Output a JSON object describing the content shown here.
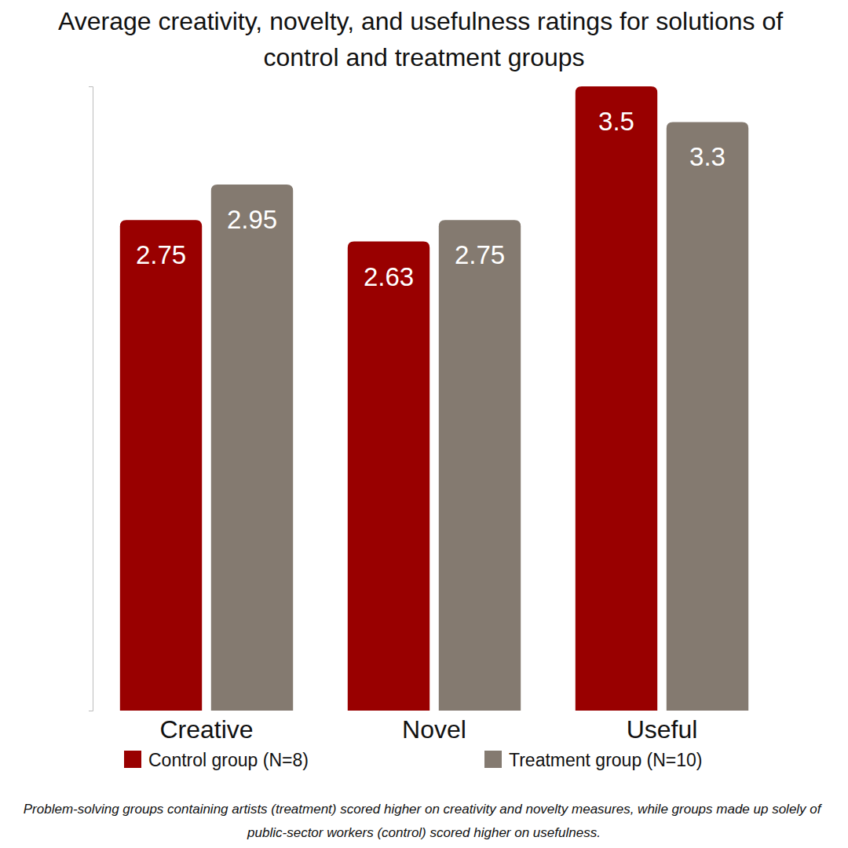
{
  "chart_data": {
    "type": "bar",
    "title": "Average creativity, novelty, and usefulness ratings for solutions of control and treatment groups",
    "caption": "Problem-solving groups containing artists (treatment) scored higher on creativity and novelty measures, while groups made up solely of public-sector workers (control) scored higher on usefulness.",
    "categories": [
      "Creative",
      "Novel",
      "Useful"
    ],
    "series": [
      {
        "name": "Control group (N=8)",
        "color": "#990000",
        "values": [
          2.75,
          2.63,
          3.5
        ]
      },
      {
        "name": "Treatment group (N=10)",
        "color": "#847a70",
        "values": [
          2.95,
          2.75,
          3.3
        ]
      }
    ],
    "ylim": [
      0,
      3.5
    ],
    "yticks": [
      0,
      3.5
    ],
    "grid": false,
    "legend": "bottom",
    "data_labels": true,
    "tick_labels": "x"
  }
}
